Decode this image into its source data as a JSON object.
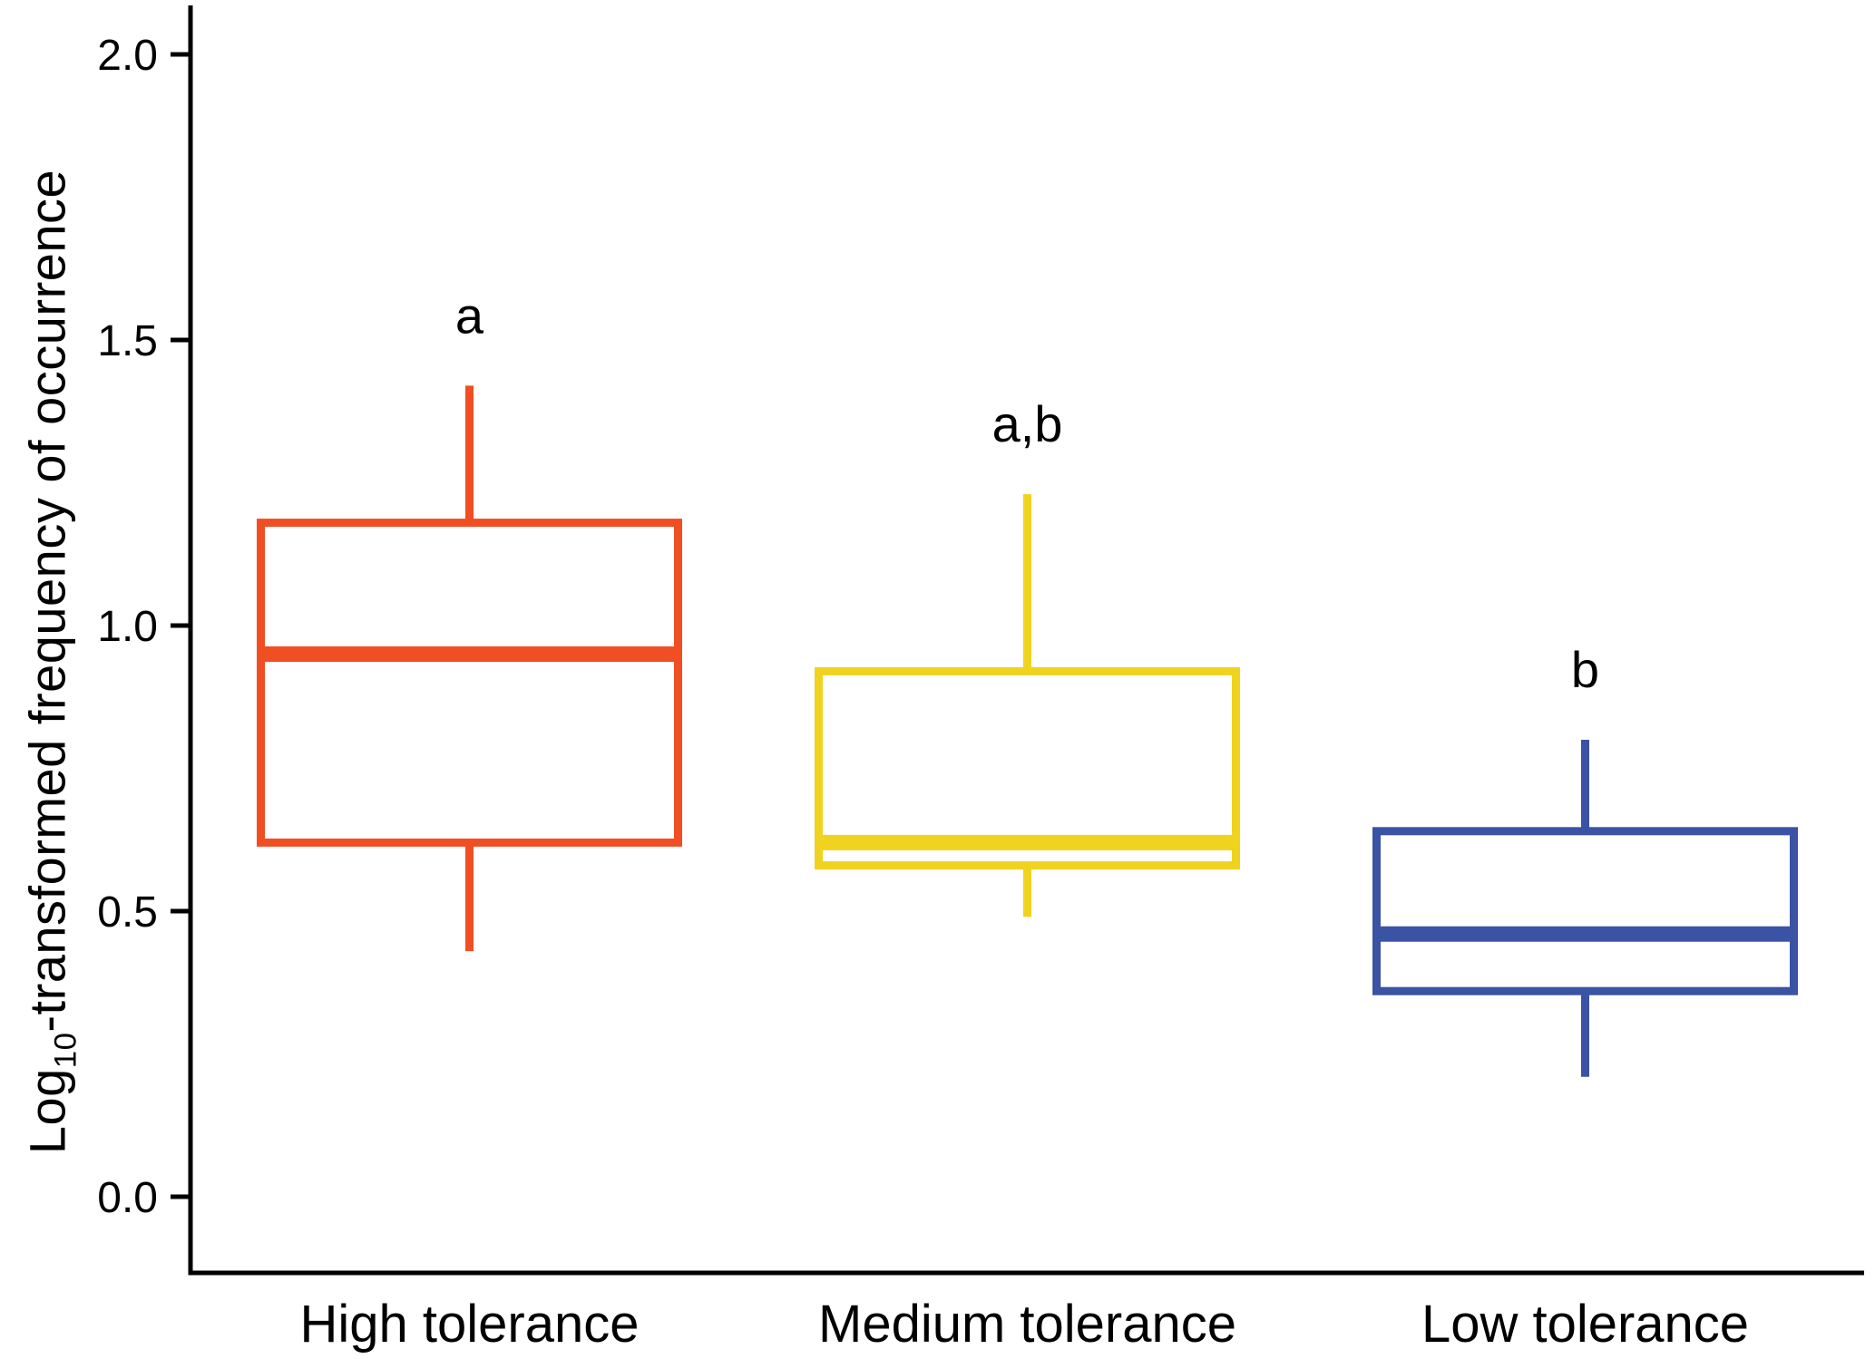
{
  "figure": {
    "background": "#ffffff",
    "axis_color": "#000000",
    "text_color": "#000000",
    "ylabel": {
      "prefix": "Log",
      "sub": "10",
      "rest": "-transformed frequency of occurrence"
    }
  },
  "chart_data": {
    "type": "boxplot",
    "title": "",
    "xlabel": "",
    "ylabel": "Log10-transformed frequency of occurrence",
    "grid": false,
    "legend": "none",
    "ylim": [
      -0.13,
      2.08
    ],
    "yticks": [
      0.0,
      0.5,
      1.0,
      1.5,
      2.0
    ],
    "ytick_labels": [
      "0.0",
      "0.5",
      "1.0",
      "1.5",
      "2.0"
    ],
    "categories": [
      "High tolerance",
      "Medium tolerance",
      "Low tolerance"
    ],
    "series": [
      {
        "name": "High tolerance",
        "color": "#F04E23",
        "lower_whisker": 0.43,
        "q1": 0.62,
        "median": 0.95,
        "q3": 1.18,
        "upper_whisker": 1.42,
        "sig_label": "a"
      },
      {
        "name": "Medium tolerance",
        "color": "#EFD31F",
        "lower_whisker": 0.49,
        "q1": 0.58,
        "median": 0.62,
        "q3": 0.92,
        "upper_whisker": 1.23,
        "sig_label": "a,b"
      },
      {
        "name": "Low tolerance",
        "color": "#3A53A4",
        "lower_whisker": 0.21,
        "q1": 0.36,
        "median": 0.46,
        "q3": 0.64,
        "upper_whisker": 0.8,
        "sig_label": "b"
      }
    ]
  }
}
